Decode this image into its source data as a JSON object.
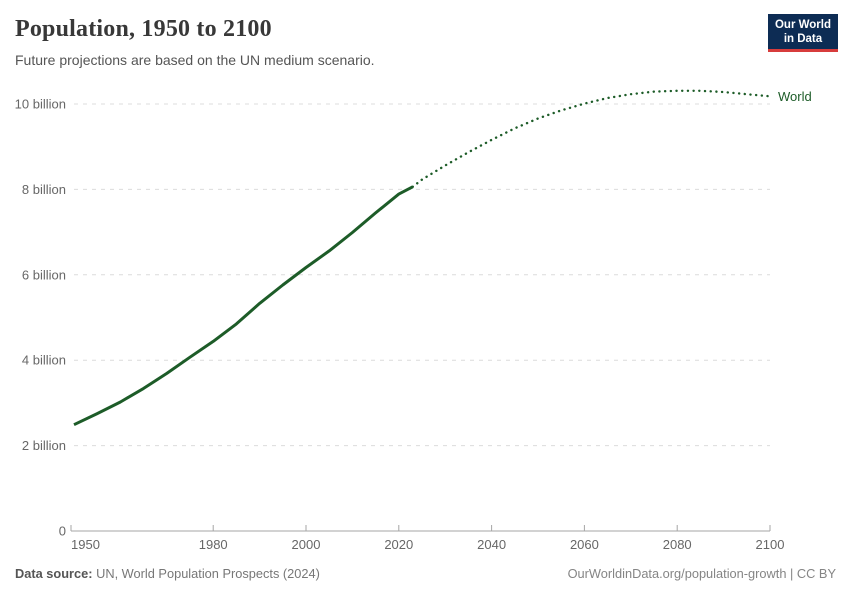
{
  "header": {
    "title": "Population, 1950 to 2100",
    "subtitle": "Future projections are based on the UN medium scenario.",
    "logo_line1": "Our World",
    "logo_line2": "in Data"
  },
  "footer": {
    "source_label": "Data source:",
    "source_value": " UN, World Population Prospects (2024)",
    "link": "OurWorldinData.org/population-growth | CC BY"
  },
  "colors": {
    "line": "#1d5c28",
    "grid": "#dcdcdc",
    "axis": "#a5a5a5",
    "tick_text": "#676767",
    "logo_bg": "#0d2c54",
    "logo_stripe": "#d73c3c"
  },
  "chart_data": {
    "type": "line",
    "title": "Population, 1950 to 2100",
    "subtitle": "Future projections are based on the UN medium scenario.",
    "unit": "billion people",
    "end_label": "World",
    "xlim": [
      1950,
      2100
    ],
    "ylim": [
      0,
      10.75
    ],
    "grid": "horizontal-dashed",
    "legend_position": "line-end",
    "x_ticks": [
      1950,
      1980,
      2000,
      2020,
      2040,
      2060,
      2080,
      2100
    ],
    "y_ticks": [
      {
        "value": 0,
        "label": "0"
      },
      {
        "value": 2,
        "label": "2 billion"
      },
      {
        "value": 4,
        "label": "4 billion"
      },
      {
        "value": 6,
        "label": "6 billion"
      },
      {
        "value": 8,
        "label": "8 billion"
      },
      {
        "value": 10,
        "label": "10 billion"
      }
    ],
    "series": [
      {
        "name": "World (historical)",
        "style": "solid",
        "x": [
          1950,
          1955,
          1960,
          1965,
          1970,
          1975,
          1980,
          1985,
          1990,
          1995,
          2000,
          2005,
          2010,
          2015,
          2020,
          2023
        ],
        "y": [
          2.49,
          2.75,
          3.02,
          3.34,
          3.69,
          4.07,
          4.44,
          4.85,
          5.33,
          5.76,
          6.17,
          6.56,
          6.99,
          7.45,
          7.89,
          8.06
        ]
      },
      {
        "name": "World (UN medium projection)",
        "style": "dotted",
        "x": [
          2023,
          2025,
          2030,
          2035,
          2040,
          2045,
          2050,
          2055,
          2060,
          2065,
          2070,
          2075,
          2080,
          2085,
          2090,
          2095,
          2100
        ],
        "y": [
          8.06,
          8.23,
          8.56,
          8.87,
          9.16,
          9.43,
          9.66,
          9.85,
          10.01,
          10.14,
          10.23,
          10.29,
          10.31,
          10.31,
          10.28,
          10.23,
          10.18
        ]
      }
    ]
  }
}
